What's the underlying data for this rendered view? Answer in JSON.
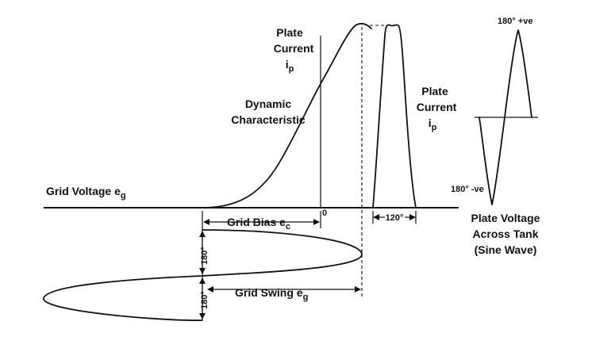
{
  "labels": {
    "plate_current_top": {
      "line1": "Plate",
      "line2": "Current",
      "symbol": "i",
      "sub": "p"
    },
    "plate_current_right": {
      "line1": "Plate",
      "line2": "Current",
      "symbol": "i",
      "sub": "p"
    },
    "dynamic_characteristic": {
      "line1": "Dynamic",
      "line2": "Characteristic"
    },
    "grid_voltage": {
      "text": "Grid Voltage  e",
      "sub": "g"
    },
    "grid_bias": {
      "text": "Grid Bias e",
      "sub": "c"
    },
    "zero": "0",
    "angle_120": "120°",
    "plate_voltage": {
      "line1": "Plate Voltage",
      "line2": "Across Tank",
      "line3": "(Sine Wave)"
    },
    "angle_180_pos": "180° +ve",
    "angle_180_neg": "180° -ve",
    "grid_swing": {
      "text": "Grid Swing e",
      "sub": "g"
    },
    "angle_180_upper": "180°",
    "angle_180_lower": "180°"
  }
}
